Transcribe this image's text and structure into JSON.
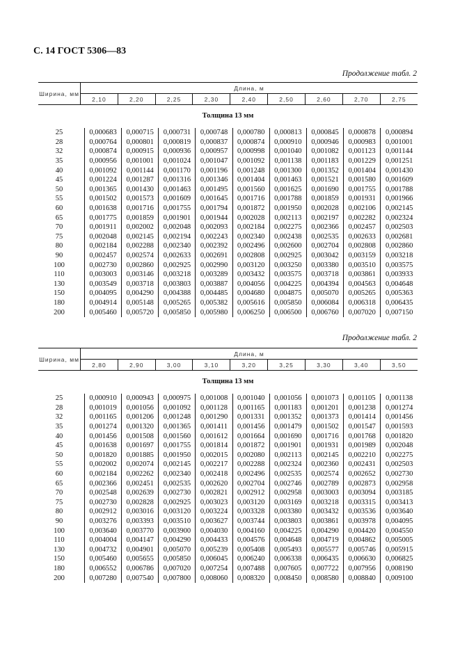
{
  "page_header": "С. 14 ГОСТ 5306—83",
  "tables": [
    {
      "continuation": "Продолжение табл. 2",
      "width_header": "Ширина, мм",
      "length_header": "Длина, м",
      "lengths": [
        "2,10",
        "2,20",
        "2,25",
        "2,30",
        "2,40",
        "2,50",
        "2,60",
        "2,70",
        "2,75"
      ],
      "thickness_label": "Толщина 13 мм",
      "rows": [
        [
          "25",
          "0,000683",
          "0,000715",
          "0,000731",
          "0,000748",
          "0,000780",
          "0,000813",
          "0,000845",
          "0,000878",
          "0,000894"
        ],
        [
          "28",
          "0,000764",
          "0,000801",
          "0,000819",
          "0,000837",
          "0,000874",
          "0,000910",
          "0,000946",
          "0,000983",
          "0,001001"
        ],
        [
          "32",
          "0,000874",
          "0,000915",
          "0,000936",
          "0,000957",
          "0,000998",
          "0,001040",
          "0,001082",
          "0,001123",
          "0,001144"
        ],
        [
          "35",
          "0,000956",
          "0,001001",
          "0,001024",
          "0,001047",
          "0,001092",
          "0,001138",
          "0,001183",
          "0,001229",
          "0,001251"
        ],
        [
          "40",
          "0,001092",
          "0,001144",
          "0,001170",
          "0,001196",
          "0,001248",
          "0,001300",
          "0,001352",
          "0,001404",
          "0,001430"
        ],
        [
          "45",
          "0,001224",
          "0,001287",
          "0,001316",
          "0,001346",
          "0,001404",
          "0,001463",
          "0,001521",
          "0,001580",
          "0,001609"
        ],
        [
          "50",
          "0,001365",
          "0,001430",
          "0,001463",
          "0,001495",
          "0,001560",
          "0,001625",
          "0,001690",
          "0,001755",
          "0,001788"
        ],
        [
          "55",
          "0,001502",
          "0,001573",
          "0,001609",
          "0,001645",
          "0,001716",
          "0,001788",
          "0,001859",
          "0,001931",
          "0,001966"
        ],
        [
          "60",
          "0,001638",
          "0,001716",
          "0,001755",
          "0,001794",
          "0,001872",
          "0,001950",
          "0,002028",
          "0,002106",
          "0,002145"
        ],
        [
          "65",
          "0,001775",
          "0,001859",
          "0,001901",
          "0,001944",
          "0,002028",
          "0,002113",
          "0,002197",
          "0,002282",
          "0,002324"
        ],
        [
          "70",
          "0,001911",
          "0,002002",
          "0,002048",
          "0,002093",
          "0,002184",
          "0,002275",
          "0,002366",
          "0,002457",
          "0,002503"
        ],
        [
          "75",
          "0,002048",
          "0,002145",
          "0,002194",
          "0,002243",
          "0,002340",
          "0,002438",
          "0,002535",
          "0,002633",
          "0,002681"
        ],
        [
          "80",
          "0,002184",
          "0,002288",
          "0,002340",
          "0,002392",
          "0,002496",
          "0,002600",
          "0,002704",
          "0,002808",
          "0,002860"
        ],
        [
          "90",
          "0,002457",
          "0,002574",
          "0,002633",
          "0,002691",
          "0,002808",
          "0,002925",
          "0,003042",
          "0,003159",
          "0,003218"
        ],
        [
          "100",
          "0,002730",
          "0,002860",
          "0,002925",
          "0,002990",
          "0,003120",
          "0,003250",
          "0,003380",
          "0,003510",
          "0,003575"
        ],
        [
          "110",
          "0,003003",
          "0,003146",
          "0,003218",
          "0,003289",
          "0,003432",
          "0,003575",
          "0,003718",
          "0,003861",
          "0,003933"
        ],
        [
          "130",
          "0,003549",
          "0,003718",
          "0,003803",
          "0,003887",
          "0,004056",
          "0,004225",
          "0,004394",
          "0,004563",
          "0,004648"
        ],
        [
          "150",
          "0,004095",
          "0,004290",
          "0,004388",
          "0,004485",
          "0,004680",
          "0,004875",
          "0,005070",
          "0,005265",
          "0,005363"
        ],
        [
          "180",
          "0,004914",
          "0,005148",
          "0,005265",
          "0,005382",
          "0,005616",
          "0,005850",
          "0,006084",
          "0,006318",
          "0,006435"
        ],
        [
          "200",
          "0,005460",
          "0,005720",
          "0,005850",
          "0,005980",
          "0,006250",
          "0,006500",
          "0,006760",
          "0,007020",
          "0,007150"
        ]
      ]
    },
    {
      "continuation": "Продолжение табл. 2",
      "width_header": "Ширина, мм",
      "length_header": "Длина, м",
      "lengths": [
        "2,80",
        "2,90",
        "3,00",
        "3,10",
        "3,20",
        "3,25",
        "3,30",
        "3,40",
        "3,50"
      ],
      "thickness_label": "Толщина 13 мм",
      "rows": [
        [
          "25",
          "0,000910",
          "0,000943",
          "0,000975",
          "0,001008",
          "0,001040",
          "0,001056",
          "0,001073",
          "0,001105",
          "0,001138"
        ],
        [
          "28",
          "0,001019",
          "0,001056",
          "0,001092",
          "0,001128",
          "0,001165",
          "0,001183",
          "0,001201",
          "0,001238",
          "0,001274"
        ],
        [
          "32",
          "0,001165",
          "0,001206",
          "0,001248",
          "0,001290",
          "0,001331",
          "0,001352",
          "0,001373",
          "0,001414",
          "0,001456"
        ],
        [
          "35",
          "0,001274",
          "0,001320",
          "0,001365",
          "0,001411",
          "0,001456",
          "0,001479",
          "0,001502",
          "0,001547",
          "0,001593"
        ],
        [
          "40",
          "0,001456",
          "0,001508",
          "0,001560",
          "0,001612",
          "0,001664",
          "0,001690",
          "0,001716",
          "0,001768",
          "0,001820"
        ],
        [
          "45",
          "0,001638",
          "0,001697",
          "0,001755",
          "0,001814",
          "0,001872",
          "0,001901",
          "0,001931",
          "0,001989",
          "0,002048"
        ],
        [
          "50",
          "0,001820",
          "0,001885",
          "0,001950",
          "0,002015",
          "0,002080",
          "0,002113",
          "0,002145",
          "0,002210",
          "0,002275"
        ],
        [
          "55",
          "0,002002",
          "0,002074",
          "0,002145",
          "0,002217",
          "0,002288",
          "0,002324",
          "0,002360",
          "0,002431",
          "0,002503"
        ],
        [
          "60",
          "0,002184",
          "0,002262",
          "0,002340",
          "0,002418",
          "0,002496",
          "0,002535",
          "0,002574",
          "0,002652",
          "0,002730"
        ],
        [
          "65",
          "0,002366",
          "0,002451",
          "0,002535",
          "0,002620",
          "0,002704",
          "0,002746",
          "0,002789",
          "0,002873",
          "0,002958"
        ],
        [
          "70",
          "0,002548",
          "0,002639",
          "0,002730",
          "0,002821",
          "0,002912",
          "0,002958",
          "0,003003",
          "0,003094",
          "0,003185"
        ],
        [
          "75",
          "0,002730",
          "0,002828",
          "0,002925",
          "0,003023",
          "0,003120",
          "0,003169",
          "0,003218",
          "0,003315",
          "0,003413"
        ],
        [
          "80",
          "0,002912",
          "0,003016",
          "0,003120",
          "0,003224",
          "0,003328",
          "0,003380",
          "0,003432",
          "0,003536",
          "0,003640"
        ],
        [
          "90",
          "0,003276",
          "0,003393",
          "0,003510",
          "0,003627",
          "0,003744",
          "0,003803",
          "0,003861",
          "0,003978",
          "0,004095"
        ],
        [
          "100",
          "0,003640",
          "0,003770",
          "0,003900",
          "0,004030",
          "0,004160",
          "0,004225",
          "0,004290",
          "0,004420",
          "0,004550"
        ],
        [
          "110",
          "0,004004",
          "0,004147",
          "0,004290",
          "0,004433",
          "0,004576",
          "0,004648",
          "0,004719",
          "0,004862",
          "0,005005"
        ],
        [
          "130",
          "0,004732",
          "0,004901",
          "0,005070",
          "0,005239",
          "0,005408",
          "0,005493",
          "0,005577",
          "0,005746",
          "0,005915"
        ],
        [
          "150",
          "0,005460",
          "0,005655",
          "0,005850",
          "0,006045",
          "0,006240",
          "0,006338",
          "0,006435",
          "0,006630",
          "0,006825"
        ],
        [
          "180",
          "0,006552",
          "0,006786",
          "0,007020",
          "0,007254",
          "0,007488",
          "0,007605",
          "0,007722",
          "0,007956",
          "0,008190"
        ],
        [
          "200",
          "0,007280",
          "0,007540",
          "0,007800",
          "0,008060",
          "0,008320",
          "0,008450",
          "0,008580",
          "0,008840",
          "0,009100"
        ]
      ]
    }
  ]
}
